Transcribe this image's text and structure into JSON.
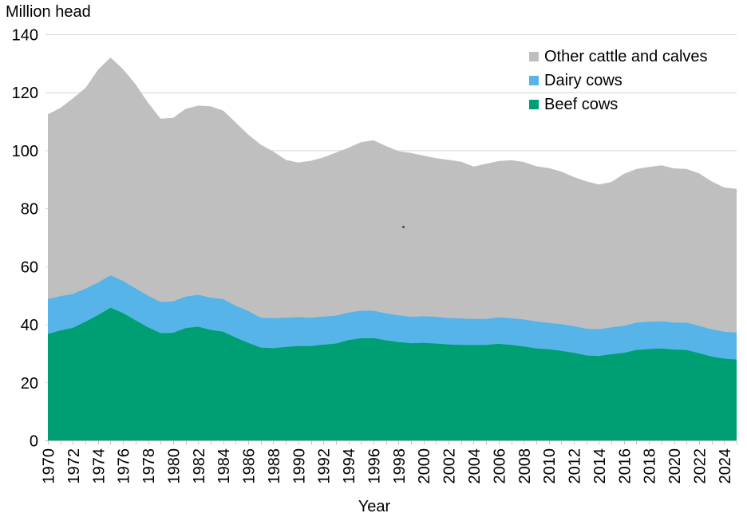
{
  "chart_data": {
    "type": "area",
    "stacked": true,
    "y_title": "Million head",
    "x_title": "Year",
    "ylim": [
      0,
      140
    ],
    "yticks": [
      0,
      20,
      40,
      60,
      80,
      100,
      120,
      140
    ],
    "grid": "horizontal",
    "legend_position": "top-right-inside",
    "x": [
      1970,
      1971,
      1972,
      1973,
      1974,
      1975,
      1976,
      1977,
      1978,
      1979,
      1980,
      1981,
      1982,
      1983,
      1984,
      1985,
      1986,
      1987,
      1988,
      1989,
      1990,
      1991,
      1992,
      1993,
      1994,
      1995,
      1996,
      1997,
      1998,
      1999,
      2000,
      2001,
      2002,
      2003,
      2004,
      2005,
      2006,
      2007,
      2008,
      2009,
      2010,
      2011,
      2012,
      2013,
      2014,
      2015,
      2016,
      2017,
      2018,
      2019,
      2020,
      2021,
      2022,
      2023,
      2024,
      2025
    ],
    "xtick_labels": [
      1970,
      1972,
      1974,
      1976,
      1978,
      1980,
      1982,
      1984,
      1986,
      1988,
      1990,
      1992,
      1994,
      1996,
      1998,
      2000,
      2002,
      2004,
      2006,
      2008,
      2010,
      2012,
      2014,
      2016,
      2018,
      2020,
      2022,
      2024
    ],
    "series": [
      {
        "name": "Beef cows",
        "color": "#009E73",
        "values": [
          36.7,
          37.9,
          38.8,
          40.9,
          43.2,
          45.7,
          43.9,
          41.4,
          39.0,
          37.0,
          37.1,
          38.7,
          39.2,
          38.1,
          37.5,
          35.4,
          33.6,
          32.0,
          31.8,
          32.2,
          32.5,
          32.5,
          33.0,
          33.4,
          34.6,
          35.2,
          35.3,
          34.5,
          33.9,
          33.5,
          33.6,
          33.4,
          33.1,
          32.9,
          32.9,
          32.9,
          33.3,
          32.9,
          32.4,
          31.7,
          31.4,
          30.9,
          30.2,
          29.3,
          29.1,
          29.7,
          30.2,
          31.2,
          31.5,
          31.7,
          31.3,
          31.2,
          30.1,
          28.9,
          28.2,
          27.9
        ]
      },
      {
        "name": "Dairy cows",
        "color": "#56B4E9",
        "values": [
          12.0,
          11.8,
          11.7,
          11.4,
          11.2,
          11.2,
          11.1,
          11.0,
          10.9,
          10.7,
          10.8,
          10.9,
          11.0,
          11.1,
          11.2,
          11.0,
          11.0,
          10.3,
          10.3,
          10.1,
          10.0,
          9.8,
          9.7,
          9.6,
          9.5,
          9.5,
          9.4,
          9.3,
          9.2,
          9.1,
          9.2,
          9.2,
          9.1,
          9.1,
          9.0,
          9.0,
          9.1,
          9.2,
          9.3,
          9.3,
          9.1,
          9.2,
          9.2,
          9.2,
          9.2,
          9.3,
          9.3,
          9.4,
          9.4,
          9.4,
          9.3,
          9.4,
          9.4,
          9.4,
          9.3,
          9.3
        ]
      },
      {
        "name": "Other cattle and calves",
        "color": "#BFBFBF",
        "values": [
          63.7,
          64.9,
          67.4,
          69.2,
          73.4,
          75.1,
          73.0,
          70.4,
          66.5,
          63.2,
          63.3,
          64.7,
          65.2,
          66.0,
          65.0,
          63.2,
          60.8,
          59.7,
          57.5,
          54.4,
          53.3,
          54.1,
          54.9,
          56.2,
          56.8,
          58.1,
          58.8,
          57.7,
          56.6,
          56.5,
          55.4,
          54.7,
          54.5,
          54.1,
          52.5,
          53.5,
          53.9,
          54.5,
          54.3,
          53.5,
          53.4,
          52.6,
          51.4,
          50.8,
          49.9,
          50.1,
          52.4,
          53.0,
          53.4,
          53.7,
          53.2,
          53.0,
          52.6,
          51.0,
          49.7,
          49.5
        ]
      }
    ],
    "total_all_cattle": [
      112.4,
      114.6,
      117.9,
      121.5,
      127.8,
      132.0,
      128.0,
      122.8,
      116.4,
      110.9,
      111.2,
      114.3,
      115.4,
      115.2,
      113.7,
      109.6,
      105.4,
      102.0,
      99.6,
      96.7,
      95.8,
      96.4,
      97.6,
      99.2,
      100.9,
      102.8,
      103.5,
      101.5,
      99.7,
      99.1,
      98.2,
      97.3,
      96.7,
      96.1,
      94.4,
      95.4,
      96.3,
      96.6,
      96.0,
      94.5,
      93.9,
      92.7,
      90.8,
      89.3,
      88.2,
      89.1,
      91.9,
      93.6,
      94.3,
      94.8,
      93.8,
      93.6,
      92.1,
      89.3,
      87.2,
      86.7
    ],
    "legend": [
      {
        "label": "Other cattle and calves",
        "color": "#BFBFBF"
      },
      {
        "label": "Dairy cows",
        "color": "#56B4E9"
      },
      {
        "label": "Beef cows",
        "color": "#009E73"
      }
    ]
  },
  "colors": {
    "background": "#FFFFFF",
    "gridline": "#D6D6D6",
    "axis": "#BFBFBF",
    "text": "#000000",
    "gray_area": "#BFBFBF",
    "blue_area": "#56B4E9",
    "green_area": "#009E73"
  }
}
